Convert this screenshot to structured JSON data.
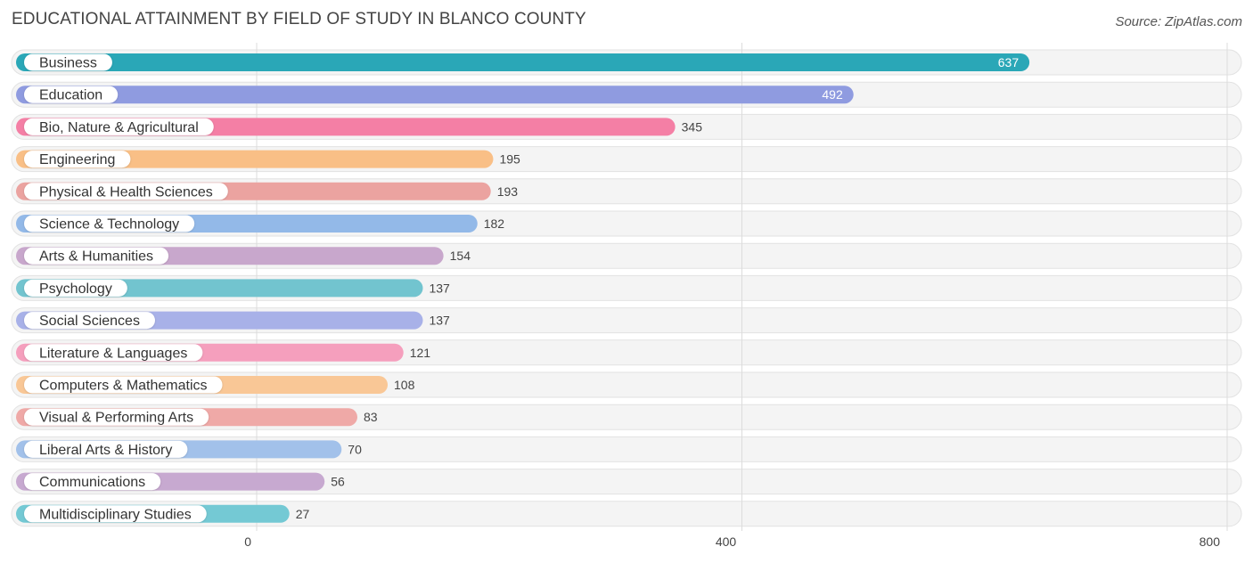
{
  "header": {
    "title": "EDUCATIONAL ATTAINMENT BY FIELD OF STUDY IN BLANCO COUNTY",
    "source": "Source: ZipAtlas.com"
  },
  "chart_data": {
    "type": "bar",
    "orientation": "horizontal",
    "title": "EDUCATIONAL ATTAINMENT BY FIELD OF STUDY IN BLANCO COUNTY",
    "categories": [
      "Business",
      "Education",
      "Bio, Nature & Agricultural",
      "Engineering",
      "Physical & Health Sciences",
      "Science & Technology",
      "Arts & Humanities",
      "Psychology",
      "Social Sciences",
      "Literature & Languages",
      "Computers & Mathematics",
      "Visual & Performing Arts",
      "Liberal Arts & History",
      "Communications",
      "Multidisciplinary Studies"
    ],
    "values": [
      637,
      492,
      345,
      195,
      193,
      182,
      154,
      137,
      137,
      121,
      108,
      83,
      70,
      56,
      27
    ],
    "colors": [
      "#2aa7b7",
      "#8f9be0",
      "#f47fa5",
      "#f9bf86",
      "#eba3a0",
      "#93b9e8",
      "#c8a7cc",
      "#72c4cf",
      "#a8b1e8",
      "#f59fbd",
      "#f9c796",
      "#efa9a7",
      "#a2c1ea",
      "#c7a9d0",
      "#74c9d4"
    ],
    "xlim": [
      0,
      800
    ],
    "xticks": [
      0,
      400,
      800
    ],
    "grid": true
  }
}
